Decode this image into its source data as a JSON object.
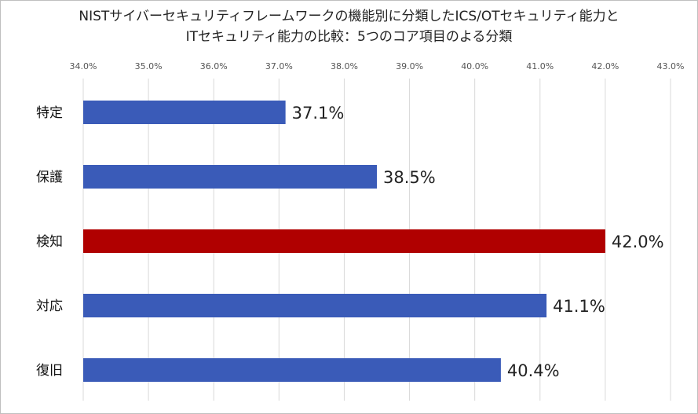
{
  "chart_data": {
    "type": "bar",
    "orientation": "horizontal",
    "title_lines": [
      "NISTサイバーセキュリティフレームワークの機能別に分類したICS/OTセキュリティ能力と",
      "ITセキュリティ能力の比較：5つのコア項目のよる分類"
    ],
    "categories": [
      "特定",
      "保護",
      "検知",
      "対応",
      "復旧"
    ],
    "values": [
      37.1,
      38.5,
      42.0,
      41.1,
      40.4
    ],
    "data_labels": [
      "37.1%",
      "38.5%",
      "42.0%",
      "41.1%",
      "40.4%"
    ],
    "xlim": [
      34.0,
      43.0
    ],
    "x_ticks": [
      34.0,
      35.0,
      36.0,
      37.0,
      38.0,
      39.0,
      40.0,
      41.0,
      42.0,
      43.0
    ],
    "x_tick_labels": [
      "34.0%",
      "35.0%",
      "36.0%",
      "37.0%",
      "38.0%",
      "39.0%",
      "40.0%",
      "41.0%",
      "42.0%",
      "43.0%"
    ],
    "x_axis_position": "top",
    "grid": true,
    "bar_colors": [
      "#3a5bb8",
      "#3a5bb8",
      "#b00000",
      "#3a5bb8",
      "#3a5bb8"
    ],
    "highlight_color": "#b00000",
    "default_color": "#3a5bb8",
    "gridline_color": "#d9d9d9"
  }
}
